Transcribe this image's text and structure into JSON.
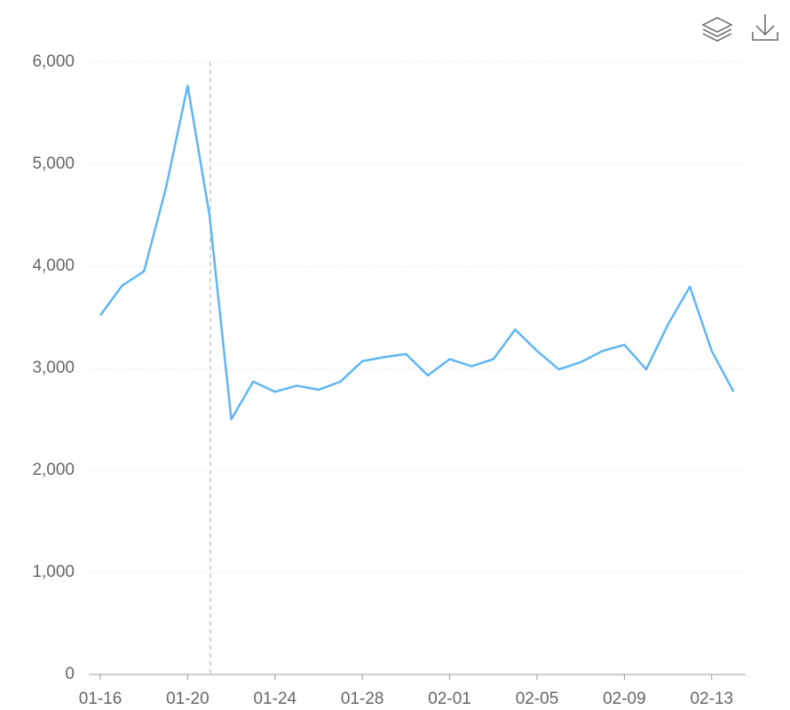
{
  "chart_data": {
    "type": "line",
    "categories": [
      "01-16",
      null,
      null,
      null,
      "01-20",
      null,
      null,
      null,
      "01-24",
      null,
      null,
      null,
      "01-28",
      null,
      null,
      null,
      "02-01",
      null,
      null,
      null,
      "02-05",
      null,
      null,
      null,
      "02-09",
      null,
      null,
      null,
      "02-13",
      null
    ],
    "series": [
      {
        "color": "#5fb6f3",
        "values": [
          3520,
          3810,
          3950,
          4760,
          5770,
          4500,
          2500,
          2870,
          2770,
          2830,
          2790,
          2870,
          3070,
          3110,
          3140,
          2930,
          3090,
          3020,
          3090,
          3380,
          3170,
          2990,
          3060,
          3170,
          3230,
          2990,
          3430,
          3800,
          3170,
          2770
        ]
      }
    ],
    "ylim": [
      0,
      6000
    ],
    "yticks": [
      0,
      {
        "value": 1000,
        "label": "1,000"
      },
      {
        "value": 2000,
        "label": "2,000"
      },
      {
        "value": 3000,
        "label": "3,000"
      },
      {
        "value": 4000,
        "label": "4,000"
      },
      {
        "value": 5000,
        "label": "5,000"
      },
      {
        "value": 6000,
        "label": "6,000"
      }
    ],
    "grid": true
  }
}
